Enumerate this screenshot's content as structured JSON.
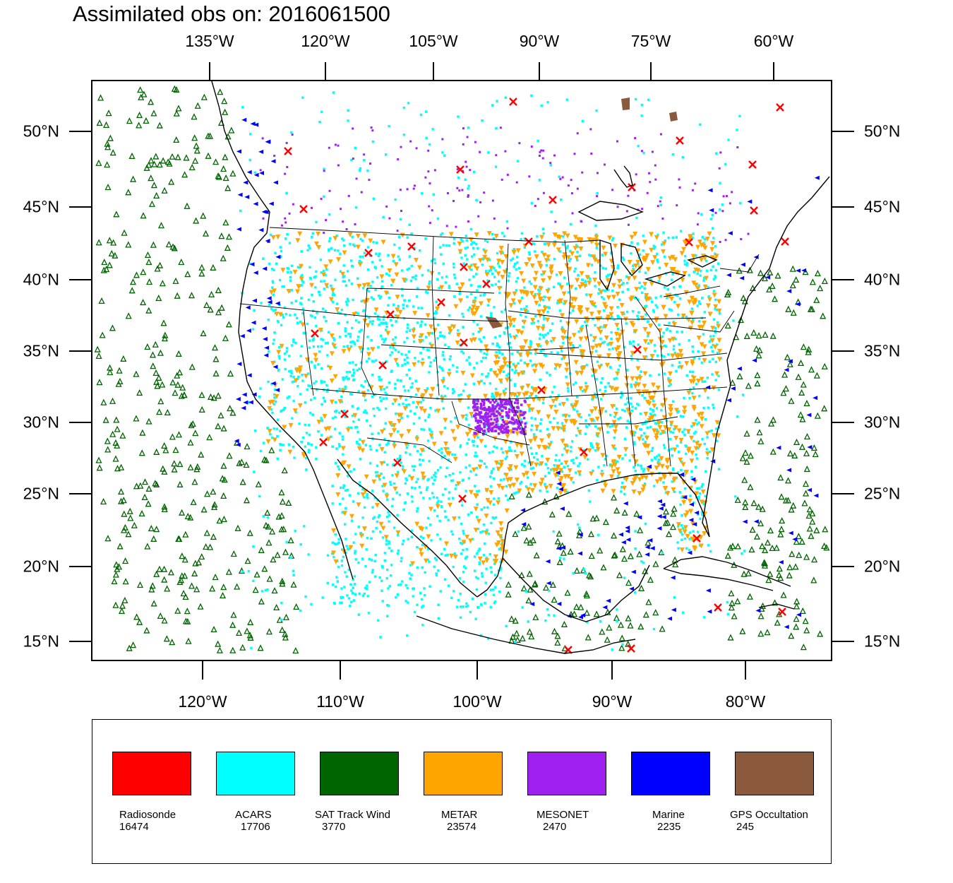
{
  "title": "Assimilated obs on: 2016061500",
  "top_lon_labels": [
    "135°W",
    "120°W",
    "105°W",
    "90°W",
    "75°W",
    "60°W"
  ],
  "bottom_lon_labels": [
    "120°W",
    "110°W",
    "100°W",
    "90°W",
    "80°W"
  ],
  "lat_labels": [
    "50°N",
    "45°N",
    "40°N",
    "35°N",
    "30°N",
    "25°N",
    "20°N",
    "15°N"
  ],
  "legend": [
    {
      "label": "Radiosonde",
      "count": "16474",
      "color": "#ff0000"
    },
    {
      "label": "ACARS",
      "count": "17706",
      "color": "#00ffff"
    },
    {
      "label": "SAT Track Wind",
      "count": "3770",
      "color": "#006400"
    },
    {
      "label": "METAR",
      "count": "23574",
      "color": "#ffa500"
    },
    {
      "label": "MESONET",
      "count": "2470",
      "color": "#a020f0"
    },
    {
      "label": "Marine",
      "count": "2235",
      "color": "#0000ff"
    },
    {
      "label": "GPS Occultation",
      "count": "245",
      "color": "#8b5a3c"
    }
  ]
}
